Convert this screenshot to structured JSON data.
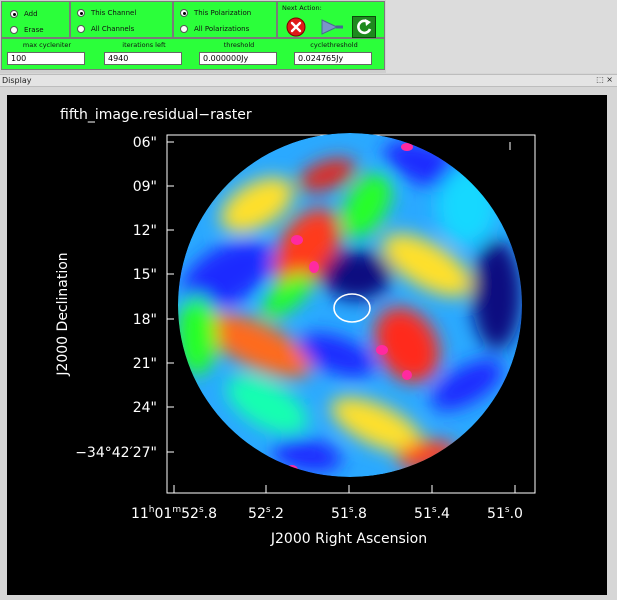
{
  "controls": {
    "mode": {
      "add": "Add",
      "erase": "Erase",
      "selected": "add"
    },
    "channel": {
      "this": "This Channel",
      "all": "All Channels",
      "selected": "this"
    },
    "polarization": {
      "this": "This Polarization",
      "all": "All Polarizations",
      "selected": "this"
    },
    "next_action": {
      "label": "Next Action:",
      "stop_icon": "stop-icon",
      "continue_icon": "continue-arrow-icon",
      "refresh_icon": "refresh-icon"
    },
    "fields": [
      {
        "label": "max cycleniter",
        "value": "100"
      },
      {
        "label": "iterations left",
        "value": "4940"
      },
      {
        "label": "threshold",
        "value": "0.000000Jy"
      },
      {
        "label": "cyclethreshold",
        "value": "0.024765Jy"
      }
    ],
    "accent": "#2bff3a"
  },
  "display": {
    "title": "Display",
    "window_buttons": "⬚ ×",
    "plot_title": "fifth_image.residual−raster",
    "ylabel": "J2000 Declination",
    "xlabel": "J2000 Right Ascension",
    "yticks": [
      "06\"",
      "09\"",
      "12\"",
      "15\"",
      "18\"",
      "21\"",
      "24\"",
      "−34°42′27\""
    ],
    "xticks": [
      {
        "main": "11",
        "sup1": "h",
        "mid": "01",
        "sup2": "m",
        "tail": "52",
        "sup3": "s",
        "frac": ".8"
      },
      {
        "main": "52",
        "sup1": "s",
        "frac": ".2"
      },
      {
        "main": "51",
        "sup1": "s",
        "frac": ".8"
      },
      {
        "main": "51",
        "sup1": "s",
        "frac": ".4"
      },
      {
        "main": "51",
        "sup1": "s",
        "frac": ".0"
      }
    ]
  }
}
